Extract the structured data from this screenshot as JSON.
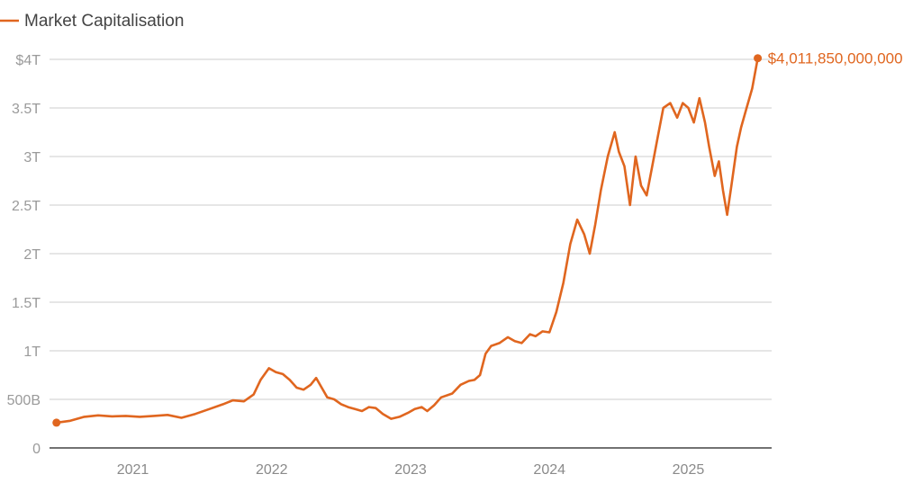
{
  "chart_data": {
    "type": "line",
    "title": "",
    "xlabel": "",
    "ylabel": "",
    "legend": {
      "placement": "top-left",
      "label": "Market Capitalisation"
    },
    "colors": {
      "series": "#e0661f",
      "grid": "#cccccc",
      "axis": "#444444",
      "tick": "#9a9a9a"
    },
    "grid": true,
    "xlim": [
      2020.4,
      2025.6
    ],
    "ylim": [
      0,
      4000000000000
    ],
    "x_ticks": [
      {
        "value": 2021,
        "label": "2021"
      },
      {
        "value": 2022,
        "label": "2022"
      },
      {
        "value": 2023,
        "label": "2023"
      },
      {
        "value": 2024,
        "label": "2024"
      },
      {
        "value": 2025,
        "label": "2025"
      }
    ],
    "y_ticks": [
      {
        "value": 0,
        "label": "0"
      },
      {
        "value": 500000000000,
        "label": "500B"
      },
      {
        "value": 1000000000000,
        "label": "1T"
      },
      {
        "value": 1500000000000,
        "label": "1.5T"
      },
      {
        "value": 2000000000000,
        "label": "2T"
      },
      {
        "value": 2500000000000,
        "label": "2.5T"
      },
      {
        "value": 3000000000000,
        "label": "3T"
      },
      {
        "value": 3500000000000,
        "label": "3.5T"
      },
      {
        "value": 4000000000000,
        "label": "$4T"
      }
    ],
    "series": [
      {
        "name": "Market Capitalisation",
        "end_label": "$4,011,850,000,000",
        "points": [
          [
            2020.45,
            260000000000
          ],
          [
            2020.55,
            280000000000
          ],
          [
            2020.65,
            320000000000
          ],
          [
            2020.75,
            335000000000
          ],
          [
            2020.85,
            325000000000
          ],
          [
            2020.95,
            330000000000
          ],
          [
            2021.05,
            320000000000
          ],
          [
            2021.15,
            330000000000
          ],
          [
            2021.25,
            340000000000
          ],
          [
            2021.35,
            310000000000
          ],
          [
            2021.45,
            350000000000
          ],
          [
            2021.55,
            400000000000
          ],
          [
            2021.65,
            450000000000
          ],
          [
            2021.72,
            490000000000
          ],
          [
            2021.8,
            480000000000
          ],
          [
            2021.87,
            550000000000
          ],
          [
            2021.92,
            700000000000
          ],
          [
            2021.98,
            820000000000
          ],
          [
            2022.03,
            780000000000
          ],
          [
            2022.08,
            760000000000
          ],
          [
            2022.13,
            700000000000
          ],
          [
            2022.18,
            620000000000
          ],
          [
            2022.23,
            600000000000
          ],
          [
            2022.28,
            650000000000
          ],
          [
            2022.32,
            720000000000
          ],
          [
            2022.36,
            620000000000
          ],
          [
            2022.4,
            520000000000
          ],
          [
            2022.45,
            500000000000
          ],
          [
            2022.5,
            450000000000
          ],
          [
            2022.55,
            420000000000
          ],
          [
            2022.6,
            400000000000
          ],
          [
            2022.65,
            380000000000
          ],
          [
            2022.7,
            420000000000
          ],
          [
            2022.75,
            410000000000
          ],
          [
            2022.8,
            350000000000
          ],
          [
            2022.86,
            300000000000
          ],
          [
            2022.92,
            320000000000
          ],
          [
            2022.98,
            360000000000
          ],
          [
            2023.03,
            400000000000
          ],
          [
            2023.08,
            420000000000
          ],
          [
            2023.12,
            380000000000
          ],
          [
            2023.17,
            440000000000
          ],
          [
            2023.22,
            520000000000
          ],
          [
            2023.3,
            560000000000
          ],
          [
            2023.36,
            650000000000
          ],
          [
            2023.42,
            690000000000
          ],
          [
            2023.46,
            700000000000
          ],
          [
            2023.5,
            750000000000
          ],
          [
            2023.54,
            970000000000
          ],
          [
            2023.58,
            1050000000000
          ],
          [
            2023.64,
            1080000000000
          ],
          [
            2023.7,
            1140000000000
          ],
          [
            2023.75,
            1100000000000
          ],
          [
            2023.8,
            1080000000000
          ],
          [
            2023.86,
            1170000000000
          ],
          [
            2023.9,
            1150000000000
          ],
          [
            2023.95,
            1200000000000
          ],
          [
            2024.0,
            1190000000000
          ],
          [
            2024.05,
            1400000000000
          ],
          [
            2024.1,
            1700000000000
          ],
          [
            2024.15,
            2100000000000
          ],
          [
            2024.2,
            2350000000000
          ],
          [
            2024.25,
            2200000000000
          ],
          [
            2024.29,
            2000000000000
          ],
          [
            2024.33,
            2300000000000
          ],
          [
            2024.37,
            2650000000000
          ],
          [
            2024.42,
            3000000000000
          ],
          [
            2024.47,
            3250000000000
          ],
          [
            2024.5,
            3050000000000
          ],
          [
            2024.54,
            2900000000000
          ],
          [
            2024.58,
            2500000000000
          ],
          [
            2024.62,
            3000000000000
          ],
          [
            2024.66,
            2700000000000
          ],
          [
            2024.7,
            2600000000000
          ],
          [
            2024.74,
            2900000000000
          ],
          [
            2024.78,
            3200000000000
          ],
          [
            2024.82,
            3500000000000
          ],
          [
            2024.87,
            3550000000000
          ],
          [
            2024.92,
            3400000000000
          ],
          [
            2024.96,
            3550000000000
          ],
          [
            2025.0,
            3500000000000
          ],
          [
            2025.04,
            3350000000000
          ],
          [
            2025.08,
            3600000000000
          ],
          [
            2025.12,
            3350000000000
          ],
          [
            2025.15,
            3100000000000
          ],
          [
            2025.19,
            2800000000000
          ],
          [
            2025.22,
            2950000000000
          ],
          [
            2025.25,
            2650000000000
          ],
          [
            2025.28,
            2400000000000
          ],
          [
            2025.31,
            2700000000000
          ],
          [
            2025.35,
            3100000000000
          ],
          [
            2025.38,
            3300000000000
          ],
          [
            2025.42,
            3500000000000
          ],
          [
            2025.46,
            3700000000000
          ],
          [
            2025.5,
            4011850000000
          ]
        ]
      }
    ]
  }
}
